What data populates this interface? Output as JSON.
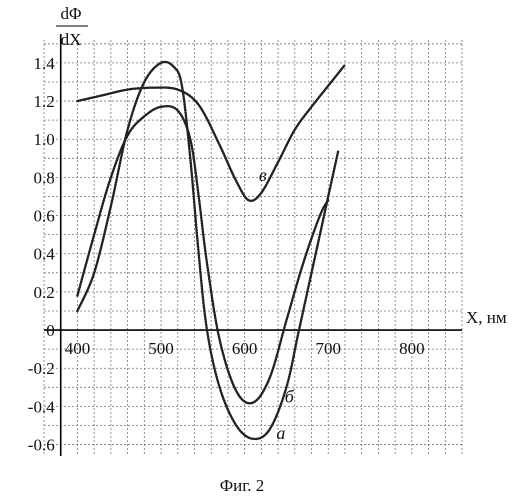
{
  "chart_data": {
    "type": "line",
    "title": "",
    "caption": "Фиг. 2",
    "ylabel": {
      "top": "dΦ",
      "bottom": "dX"
    },
    "xlabel": "X, нм",
    "xlim": [
      360,
      860
    ],
    "ylim": [
      -0.66,
      1.52
    ],
    "x_ticks": [
      400,
      500,
      600,
      700,
      800
    ],
    "y_ticks": [
      1.4,
      1.2,
      1.0,
      0.8,
      0.6,
      0.4,
      0.2,
      0,
      -0.2,
      -0.4,
      -0.6
    ],
    "x_tick_labels": [
      "400",
      "500",
      "600",
      "700",
      "800"
    ],
    "y_tick_labels": [
      "1.4",
      "1.2",
      "1.0",
      "0.8",
      "0.6",
      "0.4",
      "0.2",
      "0",
      "-0.2",
      "-0.4",
      "-0.6"
    ],
    "grid": true,
    "series": [
      {
        "name": "а",
        "color": "#222222",
        "points": [
          [
            400,
            0.1
          ],
          [
            420,
            0.3
          ],
          [
            440,
            0.65
          ],
          [
            460,
            1.05
          ],
          [
            480,
            1.3
          ],
          [
            500,
            1.4
          ],
          [
            515,
            1.38
          ],
          [
            525,
            1.28
          ],
          [
            535,
            0.9
          ],
          [
            545,
            0.4
          ],
          [
            555,
            0.0
          ],
          [
            570,
            -0.3
          ],
          [
            590,
            -0.5
          ],
          [
            610,
            -0.57
          ],
          [
            630,
            -0.52
          ],
          [
            650,
            -0.3
          ],
          [
            665,
            0.0
          ],
          [
            685,
            0.4
          ],
          [
            700,
            0.7
          ],
          [
            712,
            0.94
          ]
        ]
      },
      {
        "name": "б",
        "color": "#222222",
        "points": [
          [
            400,
            0.18
          ],
          [
            420,
            0.5
          ],
          [
            440,
            0.8
          ],
          [
            460,
            1.02
          ],
          [
            480,
            1.12
          ],
          [
            500,
            1.17
          ],
          [
            520,
            1.15
          ],
          [
            535,
            1.0
          ],
          [
            545,
            0.7
          ],
          [
            555,
            0.35
          ],
          [
            570,
            -0.05
          ],
          [
            590,
            -0.32
          ],
          [
            610,
            -0.38
          ],
          [
            630,
            -0.25
          ],
          [
            650,
            0.05
          ],
          [
            670,
            0.35
          ],
          [
            690,
            0.6
          ],
          [
            700,
            0.68
          ]
        ]
      },
      {
        "name": "в",
        "color": "#222222",
        "points": [
          [
            400,
            1.2
          ],
          [
            430,
            1.23
          ],
          [
            460,
            1.26
          ],
          [
            490,
            1.27
          ],
          [
            520,
            1.26
          ],
          [
            545,
            1.18
          ],
          [
            570,
            0.97
          ],
          [
            590,
            0.78
          ],
          [
            605,
            0.68
          ],
          [
            620,
            0.72
          ],
          [
            640,
            0.88
          ],
          [
            660,
            1.05
          ],
          [
            680,
            1.17
          ],
          [
            700,
            1.28
          ],
          [
            720,
            1.39
          ]
        ]
      }
    ],
    "curve_labels": [
      {
        "text": "в",
        "series": "в",
        "at": [
          617,
          0.78
        ]
      },
      {
        "text": "б",
        "series": "б",
        "at": [
          648,
          -0.38
        ]
      },
      {
        "text": "а",
        "series": "а",
        "at": [
          638,
          -0.57
        ]
      }
    ]
  }
}
